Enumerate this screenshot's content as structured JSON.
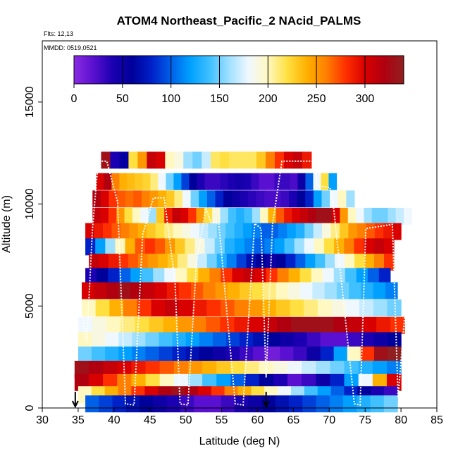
{
  "chart_data": {
    "type": "heatmap",
    "title": "ATOM4 Northeast_Pacific_2 NAcid_PALMS",
    "subtitle_flights": "Flts: 12,13",
    "subtitle_dates": "MMDD: 0519,0521",
    "xlabel": "Latitude (deg N)",
    "ylabel": "Altitude (m)",
    "xlim": [
      30,
      85
    ],
    "ylim": [
      0,
      18000
    ],
    "x_ticks": [
      "30",
      "35",
      "40",
      "45",
      "50",
      "55",
      "60",
      "65",
      "70",
      "75",
      "80",
      "85"
    ],
    "y_ticks": [
      "0",
      "5000",
      "10000",
      "15000"
    ],
    "colorbar": {
      "min": 0,
      "max": 340,
      "tick_values": [
        0,
        50,
        100,
        150,
        200,
        250,
        300
      ],
      "tick_labels": [
        "0",
        "50",
        "100",
        "150",
        "200",
        "250",
        "300"
      ],
      "palette": [
        "#8a2be2",
        "#5a10d0",
        "#1a00b0",
        "#00009a",
        "#0020c8",
        "#0060e8",
        "#00a0ff",
        "#40c0ff",
        "#a0e0ff",
        "#f0f8ff",
        "#fff8c0",
        "#ffe040",
        "#ffb000",
        "#ff8000",
        "#ff3000",
        "#d80000",
        "#b00010",
        "#902020"
      ]
    },
    "series": [
      {
        "alt": 12150,
        "x0": 38.2,
        "x1": 67.5,
        "vals": [
          330,
          40,
          55,
          220,
          250,
          310,
          300,
          200,
          190,
          160,
          150,
          170,
          215,
          220,
          215,
          215,
          215,
          230,
          260,
          280,
          300,
          310,
          290
        ]
      },
      {
        "alt": 11100,
        "x0": 37.5,
        "x1": 71.0,
        "vals": [
          300,
          320,
          260,
          240,
          235,
          230,
          225,
          210,
          180,
          150,
          120,
          90,
          60,
          40,
          30,
          30,
          35,
          40,
          45,
          40,
          30,
          20,
          20,
          30,
          30,
          25,
          50,
          100,
          180,
          220,
          120
        ]
      },
      {
        "alt": 10250,
        "x0": 37.0,
        "x1": 73.5,
        "vals": [
          320,
          300,
          280,
          270,
          265,
          270,
          260,
          250,
          240,
          230,
          210,
          180,
          150,
          120,
          100,
          80,
          60,
          50,
          40,
          35,
          30,
          25,
          25,
          30,
          40,
          60,
          80,
          120,
          150,
          180,
          200,
          160
        ]
      },
      {
        "alt": 9400,
        "x0": 37.0,
        "x1": 81.5,
        "vals": [
          310,
          300,
          280,
          250,
          220,
          200,
          180,
          160,
          230,
          290,
          310,
          300,
          280,
          250,
          220,
          190,
          160,
          140,
          130,
          140,
          160,
          200,
          240,
          270,
          290,
          300,
          310,
          320,
          330,
          330,
          300,
          250,
          200,
          180,
          160,
          150,
          150,
          160,
          170,
          180
        ]
      },
      {
        "alt": 8650,
        "x0": 36.0,
        "x1": 80.0,
        "vals": [
          300,
          290,
          280,
          270,
          260,
          250,
          240,
          230,
          220,
          210,
          200,
          190,
          180,
          170,
          160,
          150,
          140,
          130,
          120,
          110,
          100,
          100,
          110,
          120,
          130,
          150,
          170,
          190,
          210,
          230,
          250,
          260,
          270,
          280,
          290,
          300
        ]
      },
      {
        "alt": 7900,
        "x0": 36.0,
        "x1": 79.0,
        "vals": [
          80,
          120,
          160,
          200,
          240,
          270,
          280,
          270,
          250,
          230,
          210,
          190,
          170,
          150,
          130,
          120,
          110,
          100,
          110,
          120,
          140,
          160,
          180,
          200,
          220,
          240,
          260,
          280,
          300,
          310,
          300
        ]
      },
      {
        "alt": 7150,
        "x0": 36.5,
        "x1": 79.0,
        "vals": [
          310,
          300,
          290,
          280,
          270,
          260,
          250,
          240,
          230,
          210,
          190,
          170,
          150,
          130,
          110,
          90,
          70,
          60,
          50,
          60,
          80,
          100,
          120,
          140,
          160,
          180,
          200,
          220,
          240,
          260,
          280
        ]
      },
      {
        "alt": 6450,
        "x0": 36.0,
        "x1": 78.5,
        "vals": [
          40,
          60,
          80,
          100,
          120,
          140,
          160,
          180,
          200,
          220,
          240,
          260,
          280,
          300,
          310,
          300,
          280,
          260,
          240,
          220,
          200,
          180,
          160,
          140,
          120,
          100,
          80
        ]
      },
      {
        "alt": 5750,
        "x0": 35.5,
        "x1": 79.5,
        "vals": [
          300,
          310,
          320,
          330,
          320,
          310,
          300,
          290,
          280,
          270,
          260,
          250,
          240,
          230,
          220,
          210,
          200,
          190,
          180,
          170,
          160,
          150,
          140,
          130,
          120,
          110
        ]
      },
      {
        "alt": 4900,
        "x0": 35.5,
        "x1": 80.0,
        "vals": [
          200,
          220,
          240,
          260,
          280,
          300,
          310,
          300,
          290,
          280,
          270,
          260,
          250,
          240,
          230,
          220,
          210,
          200,
          190,
          180,
          170,
          160,
          150
        ]
      },
      {
        "alt": 4050,
        "x0": 35.0,
        "x1": 80.5,
        "vals": [
          180,
          190,
          200,
          210,
          220,
          230,
          240,
          250,
          260,
          270,
          280,
          290,
          300,
          310,
          320,
          330,
          330,
          330,
          320,
          310,
          300,
          290,
          280
        ]
      },
      {
        "alt": 3300,
        "x0": 35.0,
        "x1": 80.0,
        "vals": [
          200,
          190,
          180,
          170,
          160,
          150,
          140,
          130,
          120,
          110,
          100,
          90,
          80,
          70,
          60,
          50,
          40,
          30,
          20,
          20,
          30,
          40,
          50,
          60
        ]
      },
      {
        "alt": 2600,
        "x0": 35.0,
        "x1": 80.0,
        "vals": [
          150,
          140,
          130,
          120,
          110,
          100,
          90,
          80,
          70,
          60,
          50,
          40,
          30,
          20,
          10,
          20,
          30,
          50,
          80,
          120,
          200,
          280,
          330,
          340
        ]
      },
      {
        "alt": 1900,
        "x0": 34.5,
        "x1": 80.0,
        "vals": [
          330,
          320,
          310,
          300,
          290,
          280,
          270,
          260,
          250,
          240,
          230,
          220,
          210,
          200,
          190,
          180,
          170,
          160,
          150,
          140,
          130,
          120,
          110
        ]
      },
      {
        "alt": 1250,
        "x0": 34.5,
        "x1": 80.0,
        "vals": [
          320,
          300,
          280,
          260,
          240,
          220,
          200,
          180,
          160,
          140,
          120,
          100,
          80,
          60,
          40,
          20,
          30,
          50,
          80,
          120,
          180,
          240,
          300
        ]
      },
      {
        "alt": 650,
        "x0": 35.0,
        "x1": 79.5,
        "vals": [
          200,
          220,
          240,
          260,
          280,
          300,
          320,
          330,
          320,
          300,
          280,
          260,
          240,
          220,
          200,
          180,
          160,
          140,
          120,
          100,
          80,
          60,
          40,
          30
        ]
      },
      {
        "alt": 200,
        "x0": 36.0,
        "x1": 79.5,
        "vals": [
          100,
          90,
          80,
          70,
          60,
          50,
          40,
          30,
          20,
          20,
          30,
          40,
          50,
          60,
          70,
          80,
          90,
          100,
          110,
          120,
          130,
          140,
          150
        ]
      }
    ],
    "flight_path": [
      [
        35.3,
        5000
      ],
      [
        36.2,
        3200
      ],
      [
        37.0,
        8800
      ],
      [
        37.8,
        12100
      ],
      [
        39.0,
        12100
      ],
      [
        40.5,
        10100
      ],
      [
        41.6,
        200
      ],
      [
        42.8,
        150
      ],
      [
        44.0,
        8500
      ],
      [
        45.5,
        10300
      ],
      [
        47.0,
        10300
      ],
      [
        48.5,
        6200
      ],
      [
        49.2,
        200
      ],
      [
        50.3,
        150
      ],
      [
        51.5,
        7200
      ],
      [
        52.8,
        9800
      ],
      [
        53.5,
        9100
      ],
      [
        54.6,
        9050
      ],
      [
        56.9,
        200
      ],
      [
        58.0,
        150
      ],
      [
        59.6,
        9050
      ],
      [
        60.5,
        8800
      ],
      [
        61.2,
        1500
      ],
      [
        62.1,
        9000
      ],
      [
        63.4,
        12100
      ],
      [
        67.8,
        12100
      ],
      [
        68.4,
        10900
      ],
      [
        70.1,
        10800
      ],
      [
        70.6,
        9850
      ],
      [
        73.5,
        200
      ],
      [
        74.3,
        150
      ],
      [
        75.1,
        8800
      ],
      [
        78.8,
        9000
      ],
      [
        79.6,
        500
      ],
      [
        81.6,
        9300
      ]
    ],
    "markers_lat": [
      34.6,
      61.2
    ]
  }
}
